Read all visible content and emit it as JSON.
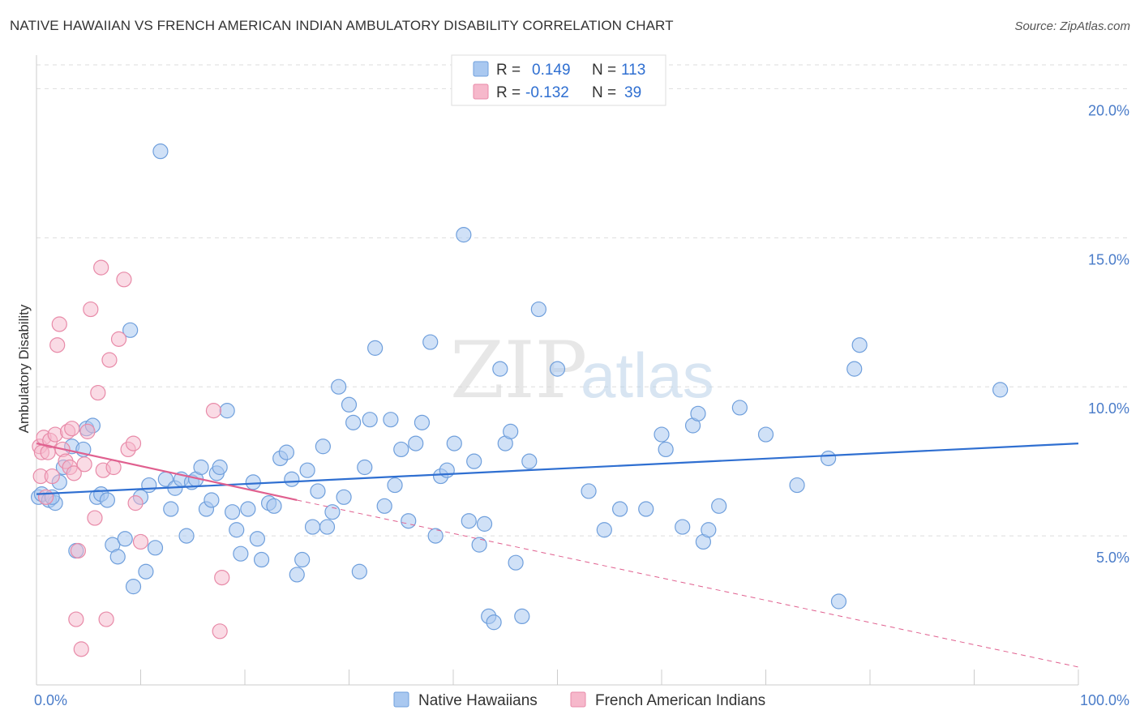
{
  "title": "NATIVE HAWAIIAN VS FRENCH AMERICAN INDIAN AMBULATORY DISABILITY CORRELATION CHART",
  "source": "Source: ZipAtlas.com",
  "watermark": {
    "zip": "ZIP",
    "atlas": "atlas"
  },
  "colors": {
    "blue_fill": "#a9c8f0",
    "blue_stroke": "#6f9fdc",
    "blue_line": "#2f6fd1",
    "pink_fill": "#f6b8cb",
    "pink_stroke": "#e88aa8",
    "pink_line": "#e0608f",
    "grid": "#dddddd",
    "tick_text": "#4a7cc9"
  },
  "legend_top": {
    "rows": [
      {
        "r_label": "R =",
        "r_value": "0.149",
        "n_label": "N =",
        "n_value": "113"
      },
      {
        "r_label": "R =",
        "r_value": "-0.132",
        "n_label": "N =",
        "n_value": "39"
      }
    ]
  },
  "legend_bottom": [
    "Native Hawaiians",
    "French American Indians"
  ],
  "chart_data": {
    "type": "scatter",
    "title": "NATIVE HAWAIIAN VS FRENCH AMERICAN INDIAN AMBULATORY DISABILITY CORRELATION CHART",
    "xlabel": "",
    "ylabel": "Ambulatory Disability",
    "xlim": [
      0,
      100
    ],
    "ylim": [
      0,
      20.8
    ],
    "x_tick_labels": [
      "0.0%",
      "100.0%"
    ],
    "y_ticks": [
      5,
      10,
      15,
      20
    ],
    "y_tick_labels": [
      "5.0%",
      "10.0%",
      "15.0%",
      "20.0%"
    ],
    "grid": true,
    "legend_placement": "top-center",
    "series": [
      {
        "name": "Native Hawaiians",
        "color": "#a9c8f0",
        "r": 0.149,
        "n": 113,
        "trend": {
          "x": [
            0,
            100
          ],
          "y": [
            6.4,
            8.1
          ]
        },
        "points": [
          [
            0.2,
            6.3
          ],
          [
            0.5,
            6.4
          ],
          [
            1.2,
            6.2
          ],
          [
            1.8,
            6.1
          ],
          [
            2.2,
            6.8
          ],
          [
            2.6,
            7.3
          ],
          [
            3.4,
            8.0
          ],
          [
            3.8,
            4.5
          ],
          [
            4.5,
            7.9
          ],
          [
            4.8,
            8.6
          ],
          [
            5.4,
            8.7
          ],
          [
            5.8,
            6.3
          ],
          [
            6.2,
            6.4
          ],
          [
            6.8,
            6.2
          ],
          [
            7.3,
            4.7
          ],
          [
            7.8,
            4.3
          ],
          [
            8.5,
            4.9
          ],
          [
            9.0,
            11.9
          ],
          [
            9.3,
            3.3
          ],
          [
            10.0,
            6.3
          ],
          [
            10.5,
            3.8
          ],
          [
            10.8,
            6.7
          ],
          [
            11.4,
            4.6
          ],
          [
            11.9,
            17.9
          ],
          [
            12.4,
            6.9
          ],
          [
            12.9,
            5.9
          ],
          [
            13.3,
            6.6
          ],
          [
            13.9,
            6.9
          ],
          [
            14.4,
            5.0
          ],
          [
            14.9,
            6.8
          ],
          [
            15.3,
            6.9
          ],
          [
            15.8,
            7.3
          ],
          [
            16.3,
            5.9
          ],
          [
            16.8,
            6.2
          ],
          [
            17.3,
            7.1
          ],
          [
            17.6,
            7.3
          ],
          [
            18.3,
            9.2
          ],
          [
            18.8,
            5.8
          ],
          [
            19.2,
            5.2
          ],
          [
            19.6,
            4.4
          ],
          [
            20.3,
            5.9
          ],
          [
            20.8,
            6.8
          ],
          [
            21.2,
            4.9
          ],
          [
            21.6,
            4.2
          ],
          [
            22.3,
            6.1
          ],
          [
            22.8,
            6.0
          ],
          [
            23.4,
            7.6
          ],
          [
            24.0,
            7.8
          ],
          [
            24.5,
            6.9
          ],
          [
            25.0,
            3.7
          ],
          [
            25.5,
            4.2
          ],
          [
            26.0,
            7.2
          ],
          [
            26.5,
            5.3
          ],
          [
            27.0,
            6.5
          ],
          [
            27.5,
            8.0
          ],
          [
            27.9,
            5.3
          ],
          [
            28.4,
            5.8
          ],
          [
            29.0,
            10.0
          ],
          [
            29.5,
            6.3
          ],
          [
            30.0,
            9.4
          ],
          [
            30.4,
            8.8
          ],
          [
            31.0,
            3.8
          ],
          [
            31.5,
            7.3
          ],
          [
            32.0,
            8.9
          ],
          [
            32.5,
            11.3
          ],
          [
            33.4,
            6.0
          ],
          [
            34.0,
            8.9
          ],
          [
            34.4,
            6.7
          ],
          [
            35.0,
            7.9
          ],
          [
            35.7,
            5.5
          ],
          [
            36.4,
            8.1
          ],
          [
            37.0,
            8.8
          ],
          [
            37.8,
            11.5
          ],
          [
            38.3,
            5.0
          ],
          [
            38.8,
            7.0
          ],
          [
            39.4,
            7.2
          ],
          [
            40.1,
            8.1
          ],
          [
            41.0,
            15.1
          ],
          [
            41.5,
            5.5
          ],
          [
            42.0,
            7.5
          ],
          [
            42.5,
            4.7
          ],
          [
            43.0,
            5.4
          ],
          [
            43.4,
            2.3
          ],
          [
            43.9,
            2.1
          ],
          [
            44.5,
            10.6
          ],
          [
            45.0,
            8.1
          ],
          [
            45.5,
            8.5
          ],
          [
            46.0,
            4.1
          ],
          [
            46.6,
            2.3
          ],
          [
            47.3,
            7.5
          ],
          [
            48.2,
            12.6
          ],
          [
            50.0,
            10.6
          ],
          [
            53.0,
            6.5
          ],
          [
            54.5,
            5.2
          ],
          [
            56.0,
            5.9
          ],
          [
            58.5,
            5.9
          ],
          [
            60.0,
            8.4
          ],
          [
            60.4,
            7.9
          ],
          [
            62.0,
            5.3
          ],
          [
            63.0,
            8.7
          ],
          [
            63.5,
            9.1
          ],
          [
            64.0,
            4.8
          ],
          [
            64.5,
            5.2
          ],
          [
            65.5,
            6.0
          ],
          [
            67.5,
            9.3
          ],
          [
            70.0,
            8.4
          ],
          [
            73.0,
            6.7
          ],
          [
            76.0,
            7.6
          ],
          [
            77.0,
            2.8
          ],
          [
            78.5,
            10.6
          ],
          [
            79.0,
            11.4
          ],
          [
            92.5,
            9.9
          ],
          [
            1.5,
            6.3
          ]
        ]
      },
      {
        "name": "French American Indians",
        "color": "#f6b8cb",
        "r": -0.132,
        "n": 39,
        "trend_solid": {
          "x": [
            0,
            25
          ],
          "y": [
            8.1,
            6.2
          ]
        },
        "trend_dashed": {
          "x": [
            25,
            100
          ],
          "y": [
            6.2,
            0.6
          ]
        },
        "points": [
          [
            0.3,
            8.0
          ],
          [
            0.4,
            7.0
          ],
          [
            0.5,
            7.8
          ],
          [
            0.7,
            8.3
          ],
          [
            0.9,
            6.3
          ],
          [
            1.1,
            7.8
          ],
          [
            1.3,
            8.2
          ],
          [
            1.5,
            7.0
          ],
          [
            1.8,
            8.4
          ],
          [
            2.0,
            11.4
          ],
          [
            2.2,
            12.1
          ],
          [
            2.5,
            7.9
          ],
          [
            2.8,
            7.5
          ],
          [
            3.0,
            8.5
          ],
          [
            3.2,
            7.3
          ],
          [
            3.4,
            8.6
          ],
          [
            3.6,
            7.1
          ],
          [
            3.8,
            2.2
          ],
          [
            4.0,
            4.5
          ],
          [
            4.3,
            1.2
          ],
          [
            4.6,
            7.4
          ],
          [
            4.9,
            8.5
          ],
          [
            5.2,
            12.6
          ],
          [
            5.6,
            5.6
          ],
          [
            5.9,
            9.8
          ],
          [
            6.2,
            14.0
          ],
          [
            6.4,
            7.2
          ],
          [
            6.7,
            2.2
          ],
          [
            7.0,
            10.9
          ],
          [
            7.4,
            7.3
          ],
          [
            7.9,
            11.6
          ],
          [
            8.4,
            13.6
          ],
          [
            8.8,
            7.9
          ],
          [
            9.3,
            8.1
          ],
          [
            9.5,
            6.1
          ],
          [
            10.0,
            4.8
          ],
          [
            17.0,
            9.2
          ],
          [
            17.6,
            1.8
          ],
          [
            17.8,
            3.6
          ]
        ]
      }
    ]
  }
}
